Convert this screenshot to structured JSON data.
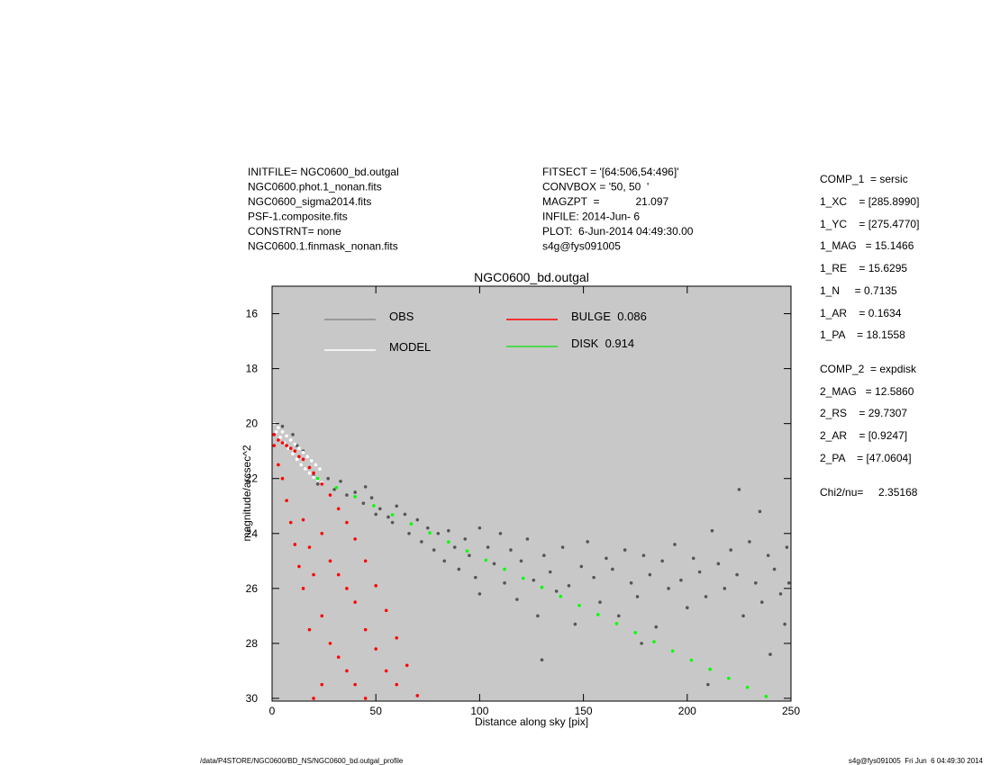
{
  "header": {
    "left": [
      "INITFILE= NGC0600_bd.outgal",
      "NGC0600.phot.1_nonan.fits",
      "NGC0600_sigma2014.fits",
      "PSF-1.composite.fits",
      "CONSTRNT= none",
      "NGC0600.1.finmask_nonan.fits"
    ],
    "middle": [
      "FITSECT = '[64:506,54:496]'",
      "CONVBOX = '50, 50  '",
      "MAGZPT  =            21.097",
      "INFILE: 2014-Jun- 6",
      "PLOT:  6-Jun-2014 04:49:30.00",
      "s4g@fys091005"
    ],
    "right": [
      "COMP_1  = sersic",
      "1_XC    = [285.8990]",
      "1_YC    = [275.4770]",
      "1_MAG   = 15.1466",
      "1_RE    = 15.6295",
      "1_N     = 0.7135",
      "1_AR    = 0.1634",
      "1_PA    = 18.1558",
      "COMP_2  = expdisk",
      "2_MAG   = 12.5860",
      "2_RS    = 29.7307",
      "2_AR    = [0.9247]",
      "2_PA    = [47.0604]",
      "Chi2/nu=     2.35168"
    ]
  },
  "footer": {
    "left": "/data/P4STORE/NGC0600/BD_NS/NGC0600_bd.outgal_profile",
    "right": "s4g@fys091005  Fri Jun  6 04:49:30 2014"
  },
  "chart_data": {
    "type": "scatter",
    "title": "NGC0600_bd.outgal",
    "x_label": "Distance along sky [pix]",
    "y_label": "magnitude/arcsec^2",
    "xlim": [
      0,
      250
    ],
    "ylim": [
      15,
      30.1
    ],
    "y_inverted": true,
    "xticks": [
      0,
      50,
      100,
      150,
      200,
      250
    ],
    "yticks": [
      16,
      18,
      20,
      22,
      24,
      26,
      28,
      30
    ],
    "background": "#c8c8c8",
    "series": [
      {
        "name": "OBS",
        "color": "#555555",
        "legend_color": "#8a8a8a",
        "x": [
          5,
          10,
          12,
          15,
          18,
          20,
          22,
          27,
          30,
          33,
          36,
          40,
          44,
          48,
          52,
          56,
          60,
          45,
          50,
          58,
          64,
          66,
          70,
          72,
          75,
          78,
          80,
          83,
          85,
          88,
          90,
          93,
          95,
          98,
          100,
          100,
          104,
          107,
          110,
          112,
          115,
          118,
          120,
          123,
          126,
          128,
          131,
          134,
          137,
          140,
          143,
          146,
          149,
          130,
          152,
          155,
          158,
          161,
          164,
          167,
          170,
          173,
          176,
          179,
          182,
          185,
          188,
          191,
          194,
          197,
          200,
          178,
          203,
          206,
          209,
          212,
          215,
          218,
          221,
          224,
          227,
          230,
          233,
          236,
          239,
          242,
          245,
          248,
          249,
          247,
          240,
          210,
          225,
          235
        ],
        "values": [
          20.1,
          20.4,
          20.8,
          21.0,
          21.6,
          21.9,
          22.2,
          22.0,
          22.4,
          22.1,
          22.6,
          22.5,
          22.9,
          22.7,
          23.1,
          23.4,
          23.0,
          22.3,
          23.3,
          23.6,
          23.3,
          24.0,
          23.5,
          24.3,
          23.8,
          24.6,
          24.0,
          25.0,
          23.9,
          24.5,
          25.3,
          24.2,
          24.8,
          25.6,
          23.8,
          26.2,
          24.5,
          25.1,
          24.0,
          25.8,
          24.6,
          26.4,
          25.0,
          24.2,
          25.7,
          27.0,
          24.8,
          25.4,
          26.1,
          24.5,
          25.9,
          27.3,
          25.2,
          28.6,
          24.3,
          25.6,
          26.5,
          24.9,
          25.3,
          27.0,
          24.6,
          25.8,
          26.3,
          24.8,
          25.5,
          27.4,
          25.0,
          26.0,
          24.4,
          25.7,
          26.7,
          28.0,
          24.9,
          25.4,
          26.3,
          23.9,
          25.1,
          26.0,
          24.6,
          25.5,
          27.0,
          24.3,
          25.8,
          26.5,
          24.8,
          25.3,
          26.2,
          24.5,
          25.8,
          27.3,
          28.4,
          29.5,
          22.4,
          23.2
        ]
      },
      {
        "name": "MODEL",
        "color": "#ffffff",
        "legend_color": "#ffffff",
        "x": [
          1,
          3,
          5,
          7,
          9,
          11,
          13,
          15,
          17,
          19,
          21,
          23,
          2,
          4,
          6,
          8,
          10,
          12,
          14,
          16,
          18,
          20,
          22,
          24
        ],
        "values": [
          20.0,
          20.15,
          20.3,
          20.45,
          20.6,
          20.75,
          20.9,
          21.05,
          21.2,
          21.35,
          21.5,
          21.65,
          20.3,
          20.5,
          20.7,
          20.9,
          21.1,
          21.3,
          21.5,
          21.65,
          21.8,
          21.95,
          22.05,
          22.15
        ]
      },
      {
        "name": "BULGE  0.086",
        "color": "#ff0000",
        "legend_color": "#ff0000",
        "x": [
          1,
          1,
          3,
          3,
          5,
          5,
          7,
          7,
          9,
          9,
          11,
          11,
          13,
          13,
          15,
          15,
          15,
          18,
          18,
          18,
          20,
          20,
          20,
          24,
          24,
          24,
          24,
          28,
          28,
          28,
          32,
          32,
          32,
          36,
          36,
          36,
          40,
          40,
          40,
          45,
          45,
          45,
          50,
          50,
          55,
          55,
          60,
          60,
          65,
          70
        ],
        "values": [
          20.4,
          20.8,
          20.6,
          21.5,
          20.7,
          22.0,
          20.8,
          22.8,
          20.9,
          23.6,
          21.0,
          24.4,
          21.2,
          25.2,
          21.3,
          26.0,
          23.5,
          21.6,
          27.5,
          24.5,
          21.8,
          30.0,
          25.5,
          22.2,
          24.0,
          27.0,
          29.5,
          22.6,
          25.0,
          28.0,
          23.1,
          25.5,
          28.5,
          23.6,
          26.0,
          29.0,
          24.2,
          26.5,
          29.5,
          25.0,
          27.5,
          30.0,
          25.9,
          28.2,
          26.8,
          29.0,
          27.8,
          29.5,
          28.8,
          29.9
        ]
      },
      {
        "name": "DISK  0.914",
        "color": "#00ff00",
        "legend_color": "#22dd22",
        "x": [
          22,
          31,
          40,
          49,
          58,
          67,
          76,
          85,
          94,
          103,
          112,
          121,
          130,
          139,
          148,
          157,
          166,
          175,
          184,
          193,
          202,
          211,
          220,
          229,
          238
        ],
        "values": [
          22.0,
          22.33,
          22.66,
          22.99,
          23.32,
          23.65,
          23.98,
          24.31,
          24.64,
          24.97,
          25.3,
          25.63,
          25.96,
          26.29,
          26.62,
          26.95,
          27.28,
          27.61,
          27.94,
          28.28,
          28.61,
          28.94,
          29.27,
          29.6,
          29.93
        ]
      }
    ]
  }
}
